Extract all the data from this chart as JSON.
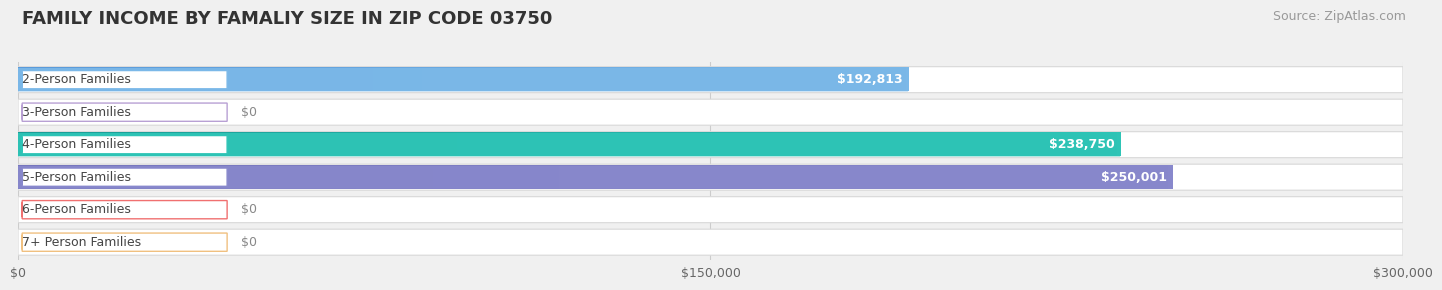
{
  "title": "FAMILY INCOME BY FAMALIY SIZE IN ZIP CODE 03750",
  "source": "Source: ZipAtlas.com",
  "categories": [
    "2-Person Families",
    "3-Person Families",
    "4-Person Families",
    "5-Person Families",
    "6-Person Families",
    "7+ Person Families"
  ],
  "values": [
    192813,
    0,
    238750,
    250001,
    0,
    0
  ],
  "bar_colors": [
    "#7BB8E8",
    "#B8A0D4",
    "#2EC4B6",
    "#8888CC",
    "#F07070",
    "#F0C080"
  ],
  "bar_colors_dark": [
    "#5A9ADA",
    "#9A80C0",
    "#1A9E98",
    "#6666B0",
    "#D05050",
    "#D09060"
  ],
  "value_labels": [
    "$192,813",
    "$0",
    "$238,750",
    "$250,001",
    "$0",
    "$0"
  ],
  "xlim": [
    0,
    300000
  ],
  "xticks": [
    0,
    150000,
    300000
  ],
  "xtick_labels": [
    "$0",
    "$150,000",
    "$300,000"
  ],
  "background_color": "#f0f0f0",
  "row_bg_color": "#ffffff",
  "row_border_color": "#d8d8d8",
  "title_fontsize": 13,
  "source_fontsize": 9,
  "label_fontsize": 9,
  "value_fontsize": 9
}
